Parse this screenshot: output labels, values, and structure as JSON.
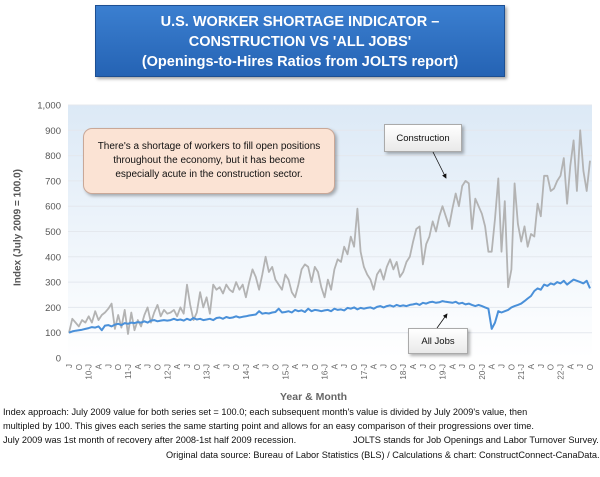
{
  "title": {
    "line1": "U.S. WORKER SHORTAGE INDICATOR –",
    "line2": "CONSTRUCTION VS 'ALL JOBS'",
    "line3": "(Openings-to-Hires Ratios from JOLTS report)"
  },
  "annotation": "There's a shortage of workers to fill open positions throughout the economy, but it has become especially acute in the construction sector.",
  "footer": {
    "line1": "Index approach: July 2009 value for both series set = 100.0; each subsequent month's value is divided by July 2009's value, then",
    "line2": "multipled by 100. This gives each series the same starting point and allows for an easy comparison of their progressions over time.",
    "line3a": "July 2009 was 1st month of recovery after 2008-1st half 2009 recession.",
    "line3b": "JOLTS stands for Job Openings and Labor Turnover Survey.",
    "line4": "Original data source: Bureau of Labor Statistics (BLS) / Calculations & chart: ConstructConnect-CanaData."
  },
  "chart_data": {
    "type": "line",
    "xlabel": "Year & Month",
    "ylabel": "Index (July 2009 = 100.0)",
    "ylim": [
      0,
      1000
    ],
    "y_ticks": [
      "0",
      "100",
      "200",
      "300",
      "400",
      "500",
      "600",
      "700",
      "800",
      "900",
      "1,000"
    ],
    "x_range": [
      "Jul 2009",
      "Oct 2022"
    ],
    "x_frequency": "monthly",
    "x_tick_labels": [
      "J",
      "O",
      "10-J",
      "A",
      "J",
      "O",
      "11-J",
      "A",
      "J",
      "O",
      "12-J",
      "A",
      "J",
      "O",
      "13-J",
      "A",
      "J",
      "O",
      "14-J",
      "A",
      "J",
      "O",
      "15-J",
      "A",
      "J",
      "O",
      "16-J",
      "A",
      "J",
      "O",
      "17-J",
      "A",
      "J",
      "O",
      "18-J",
      "A",
      "J",
      "O",
      "19-J",
      "A",
      "J",
      "O",
      "20-J",
      "A",
      "J",
      "O",
      "21-J",
      "A",
      "J",
      "O",
      "22-J",
      "A",
      "J",
      "O"
    ],
    "grid": true,
    "series": [
      {
        "name": "Construction",
        "color": "#b3b3b3",
        "values": [
          100,
          155,
          140,
          125,
          150,
          140,
          165,
          140,
          185,
          150,
          170,
          180,
          195,
          215,
          115,
          170,
          120,
          190,
          95,
          180,
          110,
          150,
          125,
          170,
          200,
          140,
          180,
          210,
          165,
          190,
          175,
          180,
          190,
          165,
          200,
          175,
          290,
          210,
          150,
          180,
          260,
          200,
          240,
          175,
          290,
          270,
          280,
          255,
          290,
          270,
          260,
          300,
          270,
          290,
          240,
          300,
          350,
          320,
          270,
          330,
          400,
          340,
          360,
          310,
          290,
          270,
          330,
          310,
          260,
          240,
          290,
          350,
          370,
          360,
          300,
          360,
          340,
          280,
          240,
          310,
          270,
          350,
          390,
          380,
          440,
          410,
          480,
          440,
          590,
          420,
          360,
          330,
          310,
          270,
          330,
          350,
          310,
          360,
          390,
          350,
          380,
          320,
          340,
          380,
          400,
          460,
          510,
          520,
          370,
          450,
          480,
          540,
          500,
          560,
          600,
          560,
          520,
          590,
          650,
          600,
          680,
          700,
          690,
          510,
          630,
          600,
          570,
          520,
          420,
          420,
          550,
          710,
          420,
          620,
          280,
          350,
          690,
          530,
          460,
          520,
          440,
          490,
          480,
          610,
          560,
          720,
          720,
          660,
          670,
          700,
          720,
          790,
          610,
          760,
          860,
          660,
          900,
          740,
          660,
          780
        ]
      },
      {
        "name": "All Jobs",
        "color": "#4a90d9",
        "values": [
          100,
          105,
          108,
          110,
          112,
          115,
          118,
          122,
          120,
          125,
          110,
          128,
          130,
          125,
          132,
          135,
          130,
          138,
          135,
          140,
          138,
          142,
          140,
          145,
          140,
          148,
          150,
          145,
          148,
          150,
          148,
          150,
          155,
          150,
          152,
          148,
          155,
          150,
          158,
          152,
          155,
          150,
          152,
          155,
          150,
          158,
          160,
          155,
          162,
          158,
          160,
          165,
          160,
          163,
          165,
          168,
          170,
          172,
          185,
          175,
          178,
          176,
          180,
          182,
          195,
          180,
          182,
          185,
          180,
          190,
          185,
          188,
          182,
          195,
          185,
          190,
          188,
          185,
          188,
          190,
          185,
          195,
          190,
          192,
          188,
          198,
          195,
          200,
          192,
          198,
          195,
          198,
          200,
          195,
          202,
          205,
          200,
          205,
          208,
          203,
          210,
          205,
          208,
          205,
          210,
          212,
          215,
          210,
          218,
          215,
          220,
          222,
          218,
          220,
          225,
          222,
          220,
          218,
          222,
          215,
          218,
          212,
          215,
          210,
          205,
          210,
          205,
          200,
          195,
          115,
          140,
          185,
          180,
          185,
          190,
          200,
          205,
          210,
          215,
          225,
          235,
          245,
          265,
          275,
          270,
          290,
          285,
          295,
          290,
          300,
          295,
          305,
          290,
          300,
          310,
          305,
          300,
          295,
          305,
          275
        ]
      }
    ]
  }
}
